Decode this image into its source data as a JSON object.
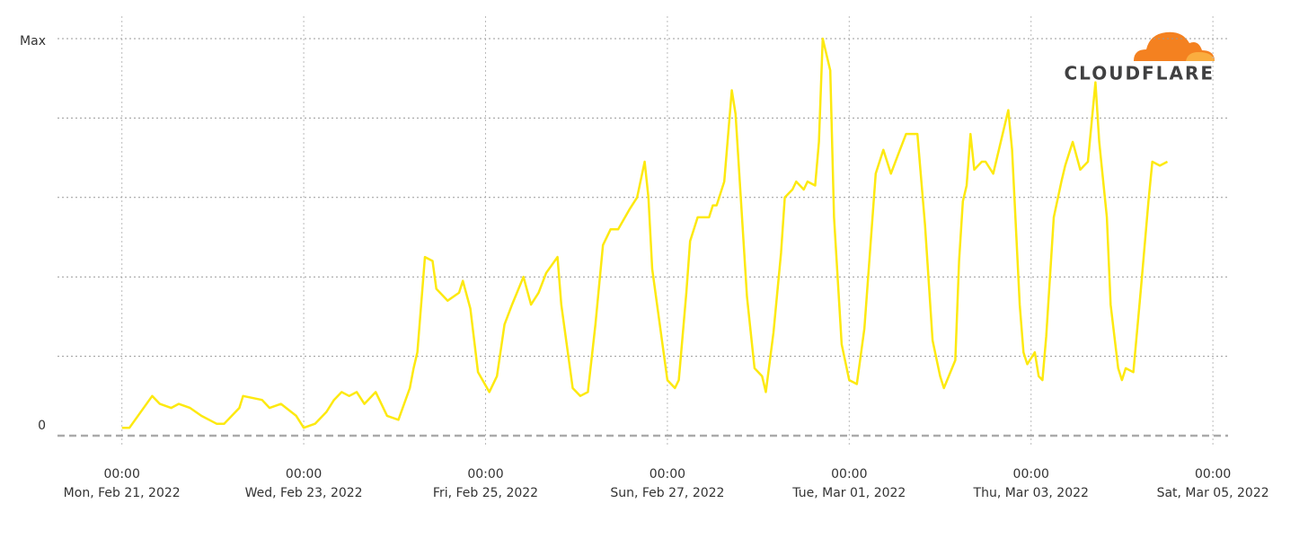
{
  "chart_data": {
    "type": "line",
    "logo": "CLOUDFLARE",
    "x": [
      "2022-02-21T00:00",
      "2022-02-21T02:00",
      "2022-02-21T08:00",
      "2022-02-21T10:00",
      "2022-02-21T13:00",
      "2022-02-21T15:00",
      "2022-02-21T18:00",
      "2022-02-21T21:00",
      "2022-02-22T01:00",
      "2022-02-22T03:00",
      "2022-02-22T05:00",
      "2022-02-22T07:00",
      "2022-02-22T08:00",
      "2022-02-22T13:00",
      "2022-02-22T15:00",
      "2022-02-22T18:00",
      "2022-02-22T22:00",
      "2022-02-23T00:00",
      "2022-02-23T03:00",
      "2022-02-23T06:00",
      "2022-02-23T08:00",
      "2022-02-23T10:00",
      "2022-02-23T12:00",
      "2022-02-23T14:00",
      "2022-02-23T16:00",
      "2022-02-23T19:00",
      "2022-02-23T22:00",
      "2022-02-24T01:00",
      "2022-02-24T04:00",
      "2022-02-24T05:00",
      "2022-02-24T06:00",
      "2022-02-24T08:00",
      "2022-02-24T10:00",
      "2022-02-24T11:00",
      "2022-02-24T14:00",
      "2022-02-24T17:00",
      "2022-02-24T18:00",
      "2022-02-24T20:00",
      "2022-02-24T22:00",
      "2022-02-25T01:00",
      "2022-02-25T03:00",
      "2022-02-25T05:00",
      "2022-02-25T07:00",
      "2022-02-25T10:00",
      "2022-02-25T12:00",
      "2022-02-25T14:00",
      "2022-02-25T16:00",
      "2022-02-25T19:00",
      "2022-02-25T20:00",
      "2022-02-25T23:00",
      "2022-02-26T01:00",
      "2022-02-26T03:00",
      "2022-02-26T05:00",
      "2022-02-26T07:00",
      "2022-02-26T09:00",
      "2022-02-26T11:00",
      "2022-02-26T14:00",
      "2022-02-26T16:00",
      "2022-02-26T18:00",
      "2022-02-26T19:00",
      "2022-02-26T20:00",
      "2022-02-27T00:00",
      "2022-02-27T02:00",
      "2022-02-27T03:00",
      "2022-02-27T05:00",
      "2022-02-27T06:00",
      "2022-02-27T08:00",
      "2022-02-27T11:00",
      "2022-02-27T12:00",
      "2022-02-27T13:00",
      "2022-02-27T15:00",
      "2022-02-27T17:00",
      "2022-02-27T18:00",
      "2022-02-27T21:00",
      "2022-02-27T23:00",
      "2022-02-28T01:00",
      "2022-02-28T02:00",
      "2022-02-28T04:00",
      "2022-02-28T06:00",
      "2022-02-28T07:00",
      "2022-02-28T09:00",
      "2022-02-28T10:00",
      "2022-02-28T12:00",
      "2022-02-28T13:00",
      "2022-02-28T15:00",
      "2022-02-28T16:00",
      "2022-02-28T17:00",
      "2022-02-28T19:00",
      "2022-02-28T20:00",
      "2022-02-28T22:00",
      "2022-03-01T00:00",
      "2022-03-01T02:00",
      "2022-03-01T04:00",
      "2022-03-01T06:00",
      "2022-03-01T07:00",
      "2022-03-01T09:00",
      "2022-03-01T11:00",
      "2022-03-01T13:00",
      "2022-03-01T15:00",
      "2022-03-01T18:00",
      "2022-03-01T20:00",
      "2022-03-01T22:00",
      "2022-03-02T00:00",
      "2022-03-02T01:00",
      "2022-03-02T04:00",
      "2022-03-02T05:00",
      "2022-03-02T06:00",
      "2022-03-02T07:00",
      "2022-03-02T08:00",
      "2022-03-02T09:00",
      "2022-03-02T11:00",
      "2022-03-02T12:00",
      "2022-03-02T14:00",
      "2022-03-02T16:00",
      "2022-03-02T18:00",
      "2022-03-02T19:00",
      "2022-03-02T21:00",
      "2022-03-02T22:00",
      "2022-03-02T23:00",
      "2022-03-03T01:00",
      "2022-03-03T02:00",
      "2022-03-03T03:00",
      "2022-03-03T04:00",
      "2022-03-03T06:00",
      "2022-03-03T08:00",
      "2022-03-03T09:00",
      "2022-03-03T11:00",
      "2022-03-03T13:00",
      "2022-03-03T15:00",
      "2022-03-03T17:00",
      "2022-03-03T18:00",
      "2022-03-03T20:00",
      "2022-03-03T21:00",
      "2022-03-03T23:00",
      "2022-03-04T00:00",
      "2022-03-04T01:00",
      "2022-03-04T03:00",
      "2022-03-04T05:00",
      "2022-03-04T07:00",
      "2022-03-04T08:00",
      "2022-03-04T10:00",
      "2022-03-04T12:00"
    ],
    "values": [
      2,
      2,
      10,
      8,
      7,
      8,
      7,
      5,
      3,
      3,
      5,
      7,
      10,
      9,
      7,
      8,
      5,
      2,
      3,
      6,
      9,
      11,
      10,
      11,
      8,
      11,
      5,
      4,
      12,
      17,
      21,
      45,
      44,
      37,
      34,
      36,
      39,
      32,
      16,
      11,
      15,
      28,
      33,
      40,
      33,
      36,
      41,
      45,
      33,
      12,
      10,
      11,
      28,
      48,
      52,
      52,
      57,
      60,
      69,
      60,
      42,
      14,
      12,
      14,
      36,
      49,
      55,
      55,
      58,
      58,
      64,
      87,
      81,
      35,
      17,
      15,
      11,
      26,
      46,
      60,
      62,
      64,
      62,
      64,
      63,
      74,
      100,
      92,
      55,
      23,
      14,
      13,
      27,
      53,
      66,
      72,
      66,
      71,
      76,
      76,
      53,
      24,
      15,
      12,
      19,
      44,
      59,
      63,
      76,
      67,
      69,
      69,
      66,
      74,
      82,
      72,
      33,
      21,
      18,
      21,
      15,
      14,
      25,
      55,
      64,
      68,
      74,
      67,
      69,
      89,
      74,
      55,
      33,
      17,
      14,
      17,
      16,
      37,
      59,
      69,
      68,
      69
    ],
    "color": "#fde910",
    "xlim": [
      "2022-02-20T07:00",
      "2022-03-05T04:00"
    ],
    "xticks": [
      {
        "value": "2022-02-21T00:00",
        "label": [
          "00:00",
          "Mon, Feb 21, 2022"
        ]
      },
      {
        "value": "2022-02-23T00:00",
        "label": [
          "00:00",
          "Wed, Feb 23, 2022"
        ]
      },
      {
        "value": "2022-02-25T00:00",
        "label": [
          "00:00",
          "Fri, Feb 25, 2022"
        ]
      },
      {
        "value": "2022-02-27T00:00",
        "label": [
          "00:00",
          "Sun, Feb 27, 2022"
        ]
      },
      {
        "value": "2022-03-01T00:00",
        "label": [
          "00:00",
          "Tue, Mar 01, 2022"
        ]
      },
      {
        "value": "2022-03-03T00:00",
        "label": [
          "00:00",
          "Thu, Mar 03, 2022"
        ]
      },
      {
        "value": "2022-03-05T00:00",
        "label": [
          "00:00",
          "Sat, Mar 05, 2022"
        ]
      }
    ],
    "ylim": [
      0,
      100
    ],
    "yticks": [
      0,
      {
        "value": 20,
        "label": null
      },
      {
        "value": 40,
        "label": null
      },
      {
        "value": 60,
        "label": null
      },
      {
        "value": 80,
        "label": null
      },
      {
        "value": 100,
        "label": "Max"
      }
    ],
    "grid": true
  }
}
